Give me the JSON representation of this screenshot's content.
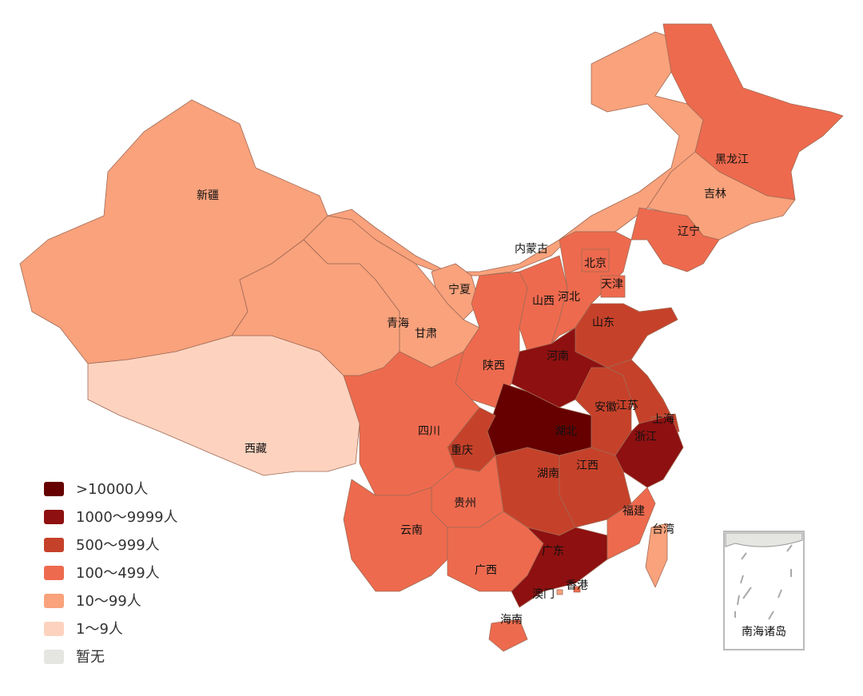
{
  "map": {
    "legend": [
      {
        "label": ">10000人",
        "color": "#660000"
      },
      {
        "label": "1000～9999人",
        "color": "#8e1010"
      },
      {
        "label": "500～999人",
        "color": "#c6412a"
      },
      {
        "label": "100～499人",
        "color": "#ee6a4e"
      },
      {
        "label": "10～99人",
        "color": "#f9a27c"
      },
      {
        "label": "1～9人",
        "color": "#fdd3bf"
      },
      {
        "label": "暂无",
        "color": "#e5e5e2"
      }
    ],
    "regions": [
      {
        "name": "新疆",
        "color": "#f9a27c"
      },
      {
        "name": "西藏",
        "color": "#fdd3bf"
      },
      {
        "name": "青海",
        "color": "#f9a27c"
      },
      {
        "name": "内蒙古",
        "color": "#f9a27c"
      },
      {
        "name": "甘肃",
        "color": "#f9a27c"
      },
      {
        "name": "黑龙江",
        "color": "#ee6a4e"
      },
      {
        "name": "吉林",
        "color": "#f9a27c"
      },
      {
        "name": "辽宁",
        "color": "#ee6a4e"
      },
      {
        "name": "宁夏",
        "color": "#f9a27c"
      },
      {
        "name": "陕西",
        "color": "#ee6a4e"
      },
      {
        "name": "山西",
        "color": "#ee6a4e"
      },
      {
        "name": "河北",
        "color": "#ee6a4e"
      },
      {
        "name": "北京",
        "color": "#ee6a4e"
      },
      {
        "name": "天津",
        "color": "#ee6a4e"
      },
      {
        "name": "山东",
        "color": "#c6412a"
      },
      {
        "name": "河南",
        "color": "#8e1010"
      },
      {
        "name": "湖北",
        "color": "#660000"
      },
      {
        "name": "安徽",
        "color": "#c6412a"
      },
      {
        "name": "江苏",
        "color": "#c6412a"
      },
      {
        "name": "上海",
        "color": "#c6412a"
      },
      {
        "name": "浙江",
        "color": "#8e1010"
      },
      {
        "name": "江西",
        "color": "#c6412a"
      },
      {
        "name": "湖南",
        "color": "#c6412a"
      },
      {
        "name": "四川",
        "color": "#ee6a4e"
      },
      {
        "name": "重庆",
        "color": "#c6412a"
      },
      {
        "name": "贵州",
        "color": "#ee6a4e"
      },
      {
        "name": "云南",
        "color": "#ee6a4e"
      },
      {
        "name": "广西",
        "color": "#ee6a4e"
      },
      {
        "name": "广东",
        "color": "#8e1010"
      },
      {
        "name": "福建",
        "color": "#ee6a4e"
      },
      {
        "name": "台湾",
        "color": "#f9a27c"
      },
      {
        "name": "海南",
        "color": "#ee6a4e"
      },
      {
        "name": "香港",
        "color": "#ee6a4e"
      },
      {
        "name": "澳门",
        "color": "#f9a27c"
      }
    ],
    "inset_label": "南海诸岛"
  }
}
